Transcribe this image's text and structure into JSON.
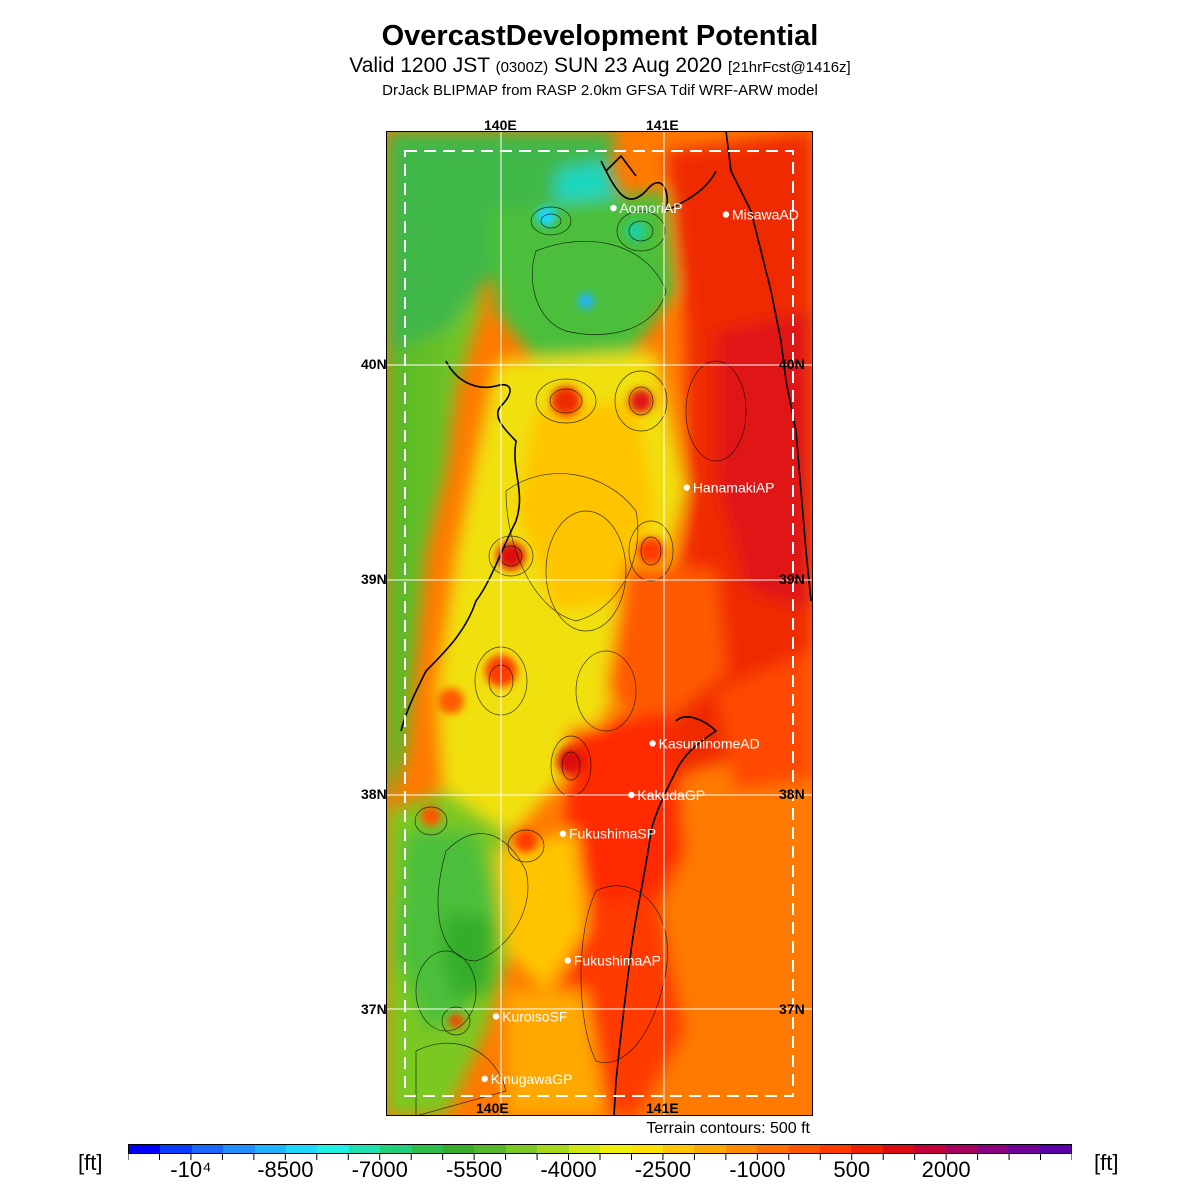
{
  "header": {
    "title": "OvercastDevelopment Potential",
    "valid_main": "Valid 1200 JST",
    "valid_utc": "(0300Z)",
    "valid_date": "SUN 23 Aug 2020",
    "forecast": "[21hrFcst@1416z]",
    "model": "DrJack BLIPMAP from RASP 2.0km GFSA Tdif WRF-ARW model"
  },
  "axes": {
    "lon_top": [
      "140E",
      "141E"
    ],
    "lon_bottom": [
      "140E",
      "141E"
    ],
    "lat_left": [
      "40N",
      "39N",
      "38N",
      "37N"
    ],
    "lat_right": [
      "40N",
      "39N",
      "38N",
      "37N"
    ]
  },
  "stations": [
    {
      "name": "AomoriAP",
      "lon": 140.69,
      "lat": 40.73
    },
    {
      "name": "MisawaAD",
      "lon": 141.38,
      "lat": 40.7
    },
    {
      "name": "HanamakiAP",
      "lon": 141.14,
      "lat": 39.43
    },
    {
      "name": "KasuminomeAD",
      "lon": 140.93,
      "lat": 38.24
    },
    {
      "name": "KakudaGP",
      "lon": 140.8,
      "lat": 38.0
    },
    {
      "name": "FukushimaSP",
      "lon": 140.38,
      "lat": 37.82
    },
    {
      "name": "FukushimaAP",
      "lon": 140.41,
      "lat": 37.23
    },
    {
      "name": "KuroisoSF",
      "lon": 139.97,
      "lat": 36.97
    },
    {
      "name": "KinugawaGP",
      "lon": 139.9,
      "lat": 36.68
    }
  ],
  "legend": {
    "contour_note": "Terrain contours: 500 ft",
    "unit_left": "[ft]",
    "unit_right": "[ft]",
    "tick_labels": [
      "-10⁴",
      "-8500",
      "-7000",
      "-5500",
      "-4000",
      "-2500",
      "-1000",
      "500",
      "2000"
    ],
    "colors": [
      "#0000ff",
      "#0a3cff",
      "#1a66ff",
      "#1f8fff",
      "#20b3ff",
      "#1fd7ff",
      "#1ff0e4",
      "#1ee0b0",
      "#1fcf7a",
      "#2bbf4a",
      "#35ad2b",
      "#55b82a",
      "#7cc823",
      "#a6d81c",
      "#cfe514",
      "#f0ef0c",
      "#ffe000",
      "#ffc400",
      "#ffa800",
      "#ff8c00",
      "#ff7000",
      "#ff5400",
      "#ff3a00",
      "#f01e00",
      "#dd0a10",
      "#c40038",
      "#a8005e",
      "#8a0080",
      "#6e0098",
      "#5a00a8"
    ]
  },
  "fields": {
    "legend_ticks_on_swatches": [
      1,
      4,
      7,
      10,
      13,
      16,
      19,
      22,
      25
    ]
  }
}
